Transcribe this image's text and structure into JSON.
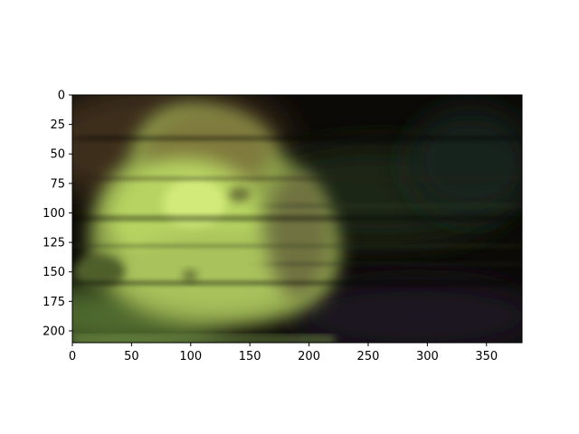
{
  "image_axes": {
    "x_range": [
      0,
      380
    ],
    "y_range": [
      0,
      210
    ],
    "y_inverted": true,
    "x_ticks": [
      {
        "value": 0,
        "label": "0"
      },
      {
        "value": 50,
        "label": "50"
      },
      {
        "value": 100,
        "label": "100"
      },
      {
        "value": 150,
        "label": "150"
      },
      {
        "value": 200,
        "label": "200"
      },
      {
        "value": 250,
        "label": "250"
      },
      {
        "value": 300,
        "label": "300"
      },
      {
        "value": 350,
        "label": "350"
      }
    ],
    "y_ticks": [
      {
        "value": 0,
        "label": "0"
      },
      {
        "value": 25,
        "label": "25"
      },
      {
        "value": 50,
        "label": "50"
      },
      {
        "value": 75,
        "label": "75"
      },
      {
        "value": 100,
        "label": "100"
      },
      {
        "value": 125,
        "label": "125"
      },
      {
        "value": 150,
        "label": "150"
      },
      {
        "value": 175,
        "label": "175"
      },
      {
        "value": 200,
        "label": "200"
      }
    ]
  },
  "image_content": {
    "description_colors": {
      "background": "#0d0b08",
      "blob_light": "#c4e26c",
      "blob_mid": "#9eb85a",
      "blob_shadow": "#6e7a3e",
      "upper_brown": "#4a3a24",
      "right_greenish": "#1e2a1a",
      "bottom_purple": "#1a141e"
    }
  }
}
